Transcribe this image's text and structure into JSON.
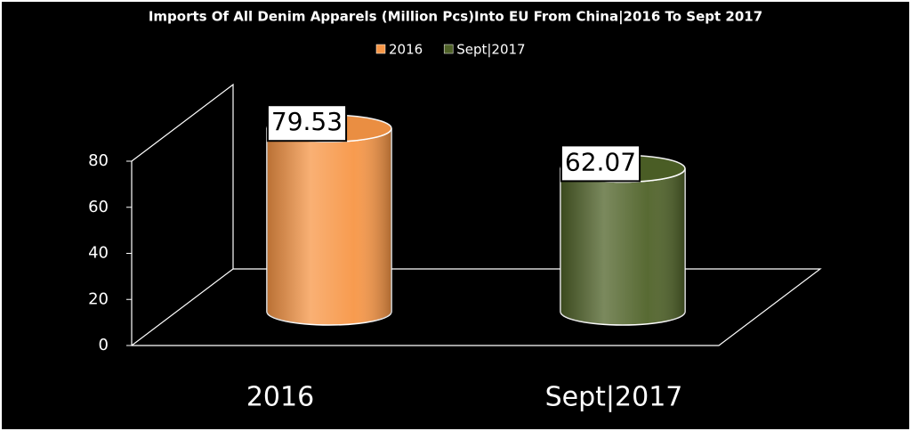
{
  "chart_data": {
    "type": "bar",
    "title": "Imports Of All Denim Apparels (Million Pcs)Into EU From China|2016 To Sept 2017",
    "categories": [
      "2016",
      "Sept|2017"
    ],
    "series": [
      {
        "name": "2016",
        "color": "#f79646",
        "values": [
          79.53,
          null
        ]
      },
      {
        "name": "Sept|2017",
        "color": "#4f6228",
        "values": [
          null,
          62.07
        ]
      }
    ],
    "ylim": [
      0,
      80
    ],
    "yticks": [
      0,
      20,
      40,
      60,
      80
    ],
    "legend": "top"
  }
}
